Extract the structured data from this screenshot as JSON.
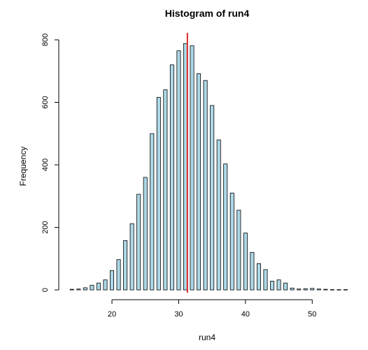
{
  "chart_data": {
    "type": "bar",
    "title": "Histogram of run4",
    "xlabel": "run4",
    "ylabel": "Frequency",
    "x": [
      14,
      15,
      16,
      17,
      18,
      19,
      20,
      21,
      22,
      23,
      24,
      25,
      26,
      27,
      28,
      29,
      30,
      31,
      32,
      33,
      34,
      35,
      36,
      37,
      38,
      39,
      40,
      41,
      42,
      43,
      44,
      45,
      46,
      47,
      48,
      49,
      50,
      51,
      52,
      53,
      54,
      55
    ],
    "values": [
      2,
      3,
      7,
      15,
      22,
      32,
      62,
      97,
      158,
      212,
      306,
      360,
      500,
      616,
      640,
      720,
      765,
      788,
      781,
      692,
      670,
      590,
      480,
      403,
      310,
      255,
      182,
      120,
      84,
      65,
      28,
      32,
      22,
      6,
      3,
      4,
      5,
      3,
      2,
      1,
      1,
      1
    ],
    "xlim": [
      13.5,
      55
    ],
    "ylim": [
      0,
      800
    ],
    "x_ticks": [
      20,
      30,
      40,
      50
    ],
    "y_ticks": [
      0,
      200,
      400,
      600,
      800
    ],
    "bar_color": "#add8e6",
    "reference_line": {
      "x": 31.3,
      "color": "#e0262a"
    },
    "grid": false
  }
}
